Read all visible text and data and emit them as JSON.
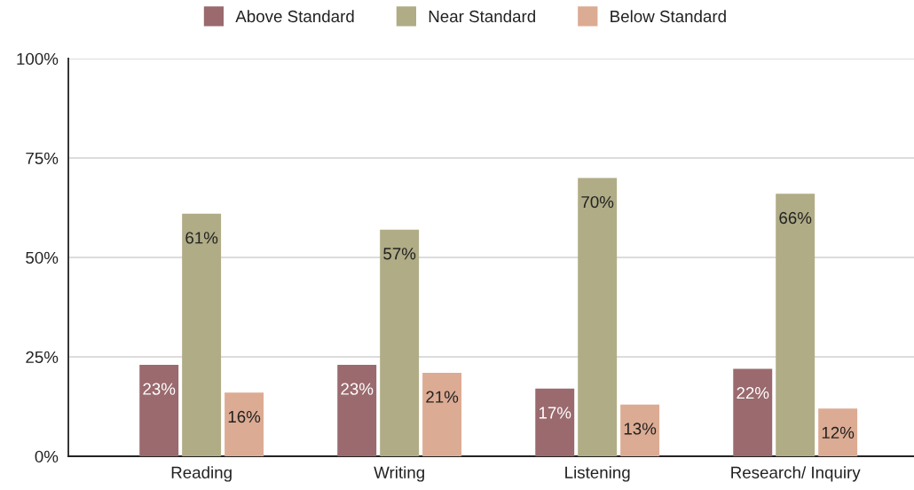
{
  "chart_data": {
    "type": "bar",
    "categories": [
      "Reading",
      "Writing",
      "Listening",
      "Research/ Inquiry"
    ],
    "series": [
      {
        "name": "Above Standard",
        "color": "#9a6a6e",
        "values": [
          23,
          23,
          17,
          22
        ],
        "value_labels": [
          "23%",
          "23%",
          "17%",
          "22%"
        ]
      },
      {
        "name": "Near Standard",
        "color": "#b0ac86",
        "values": [
          61,
          57,
          70,
          66
        ],
        "value_labels": [
          "61%",
          "57%",
          "70%",
          "66%"
        ]
      },
      {
        "name": "Below Standard",
        "color": "#dcab93",
        "values": [
          16,
          21,
          13,
          12
        ],
        "value_labels": [
          "16%",
          "21%",
          "13%",
          "12%"
        ]
      }
    ],
    "ylim": [
      0,
      100
    ],
    "yticks": [
      {
        "value": 0,
        "label": "0%"
      },
      {
        "value": 25,
        "label": "25%"
      },
      {
        "value": 50,
        "label": "50%"
      },
      {
        "value": 75,
        "label": "75%"
      },
      {
        "value": 100,
        "label": "100%"
      }
    ],
    "grid": "y",
    "legend": "top"
  }
}
